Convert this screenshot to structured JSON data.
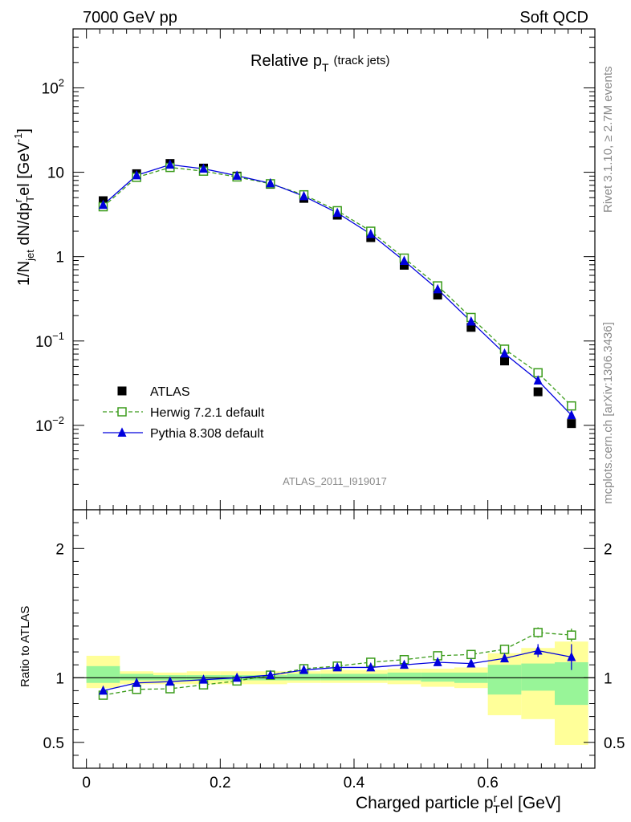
{
  "header": {
    "left": "7000 GeV pp",
    "right": "Soft QCD",
    "right_side_top": "Rivet 3.1.10, ≥ 2.7M events",
    "right_side_bottom": "mcplots.cern.ch [arXiv:1306.3436]",
    "analysis_id": "ATLAS_2011_I919017"
  },
  "chart_data": [
    {
      "type": "scatter",
      "title_main": "Relative p",
      "title_sub": "T",
      "title_note": "(track jets)",
      "ylabel": "1/N_jet dN/dp_T^rel [GeV^-1]",
      "yscale": "log",
      "ylim": [
        0.001,
        500
      ],
      "xlim": [
        -0.02,
        0.76
      ],
      "yticks": [
        {
          "value": 0.01,
          "base": "10",
          "exp": "−2"
        },
        {
          "value": 0.1,
          "base": "10",
          "exp": "−1"
        },
        {
          "value": 1,
          "base": "1",
          "exp": ""
        },
        {
          "value": 10,
          "base": "10",
          "exp": ""
        },
        {
          "value": 100,
          "base": "10",
          "exp": "2"
        }
      ],
      "x": [
        0.025,
        0.075,
        0.125,
        0.175,
        0.225,
        0.275,
        0.325,
        0.375,
        0.425,
        0.475,
        0.525,
        0.575,
        0.625,
        0.675,
        0.725
      ],
      "series": [
        {
          "name": "ATLAS",
          "color": "#000000",
          "marker": "filled-square",
          "values": [
            4.6,
            9.6,
            12.7,
            11.2,
            9.0,
            7.2,
            4.9,
            3.1,
            1.68,
            0.79,
            0.35,
            0.145,
            0.058,
            0.025,
            0.0105
          ]
        },
        {
          "name": "Herwig 7.2.1 default",
          "color": "#3a9b1a",
          "marker": "open-square",
          "line": "dashed",
          "values": [
            3.9,
            8.7,
            11.4,
            10.3,
            8.8,
            7.3,
            5.4,
            3.5,
            2.0,
            0.96,
            0.45,
            0.19,
            0.08,
            0.042,
            0.017
          ]
        },
        {
          "name": "Pythia 8.308 default",
          "color": "#0000dd",
          "marker": "filled-triangle",
          "line": "solid",
          "values": [
            4.1,
            9.2,
            12.3,
            11.0,
            9.1,
            7.4,
            5.2,
            3.3,
            1.85,
            0.89,
            0.41,
            0.17,
            0.071,
            0.034,
            0.0132
          ]
        }
      ],
      "legend": {
        "placement": "bottom-left"
      }
    },
    {
      "type": "line",
      "ylabel": "Ratio to ATLAS",
      "xlabel": "Charged particle p_T^rel [GeV]",
      "ylim": [
        0.3,
        2.3
      ],
      "xlim": [
        -0.02,
        0.76
      ],
      "xticks": [
        "0",
        "0.2",
        "0.4",
        "0.6"
      ],
      "xtick_values": [
        0,
        0.2,
        0.4,
        0.6
      ],
      "yticks": [
        "0.5",
        "1",
        "2"
      ],
      "ytick_values": [
        0.5,
        1,
        2
      ],
      "bin_edges": [
        0,
        0.05,
        0.1,
        0.15,
        0.2,
        0.25,
        0.3,
        0.35,
        0.4,
        0.45,
        0.5,
        0.55,
        0.6,
        0.65,
        0.7,
        0.75
      ],
      "band_yellow": {
        "color": "#ffff99",
        "lo": [
          0.92,
          0.95,
          0.95,
          0.95,
          0.95,
          0.95,
          0.96,
          0.96,
          0.96,
          0.95,
          0.93,
          0.92,
          0.71,
          0.68,
          0.48
        ],
        "hi": [
          1.17,
          1.05,
          1.04,
          1.05,
          1.05,
          1.05,
          1.05,
          1.06,
          1.06,
          1.07,
          1.07,
          1.08,
          1.19,
          1.23,
          1.28
        ]
      },
      "band_green": {
        "color": "#98f598",
        "lo": [
          0.96,
          0.98,
          0.98,
          0.98,
          0.98,
          0.98,
          0.98,
          0.98,
          0.98,
          0.98,
          0.97,
          0.96,
          0.87,
          0.9,
          0.79
        ],
        "hi": [
          1.09,
          1.03,
          1.02,
          1.02,
          1.02,
          1.02,
          1.03,
          1.03,
          1.03,
          1.04,
          1.04,
          1.04,
          1.1,
          1.11,
          1.12
        ]
      },
      "series": [
        {
          "name": "Herwig 7.2.1 default",
          "color": "#3a9b1a",
          "values": [
            0.865,
            0.91,
            0.915,
            0.945,
            0.975,
            1.02,
            1.07,
            1.09,
            1.12,
            1.14,
            1.17,
            1.18,
            1.22,
            1.35,
            1.33
          ],
          "err": [
            0.01,
            0.01,
            0.01,
            0.01,
            0.01,
            0.01,
            0.01,
            0.01,
            0.01,
            0.01,
            0.01,
            0.015,
            0.02,
            0.04,
            0.05
          ]
        },
        {
          "name": "Pythia 8.308 default",
          "color": "#0000dd",
          "values": [
            0.9,
            0.96,
            0.97,
            0.985,
            1.0,
            1.02,
            1.06,
            1.08,
            1.08,
            1.1,
            1.12,
            1.11,
            1.15,
            1.21,
            1.16
          ],
          "err": [
            0.008,
            0.008,
            0.008,
            0.008,
            0.008,
            0.01,
            0.01,
            0.01,
            0.01,
            0.01,
            0.012,
            0.015,
            0.025,
            0.05,
            0.1
          ]
        }
      ]
    }
  ]
}
